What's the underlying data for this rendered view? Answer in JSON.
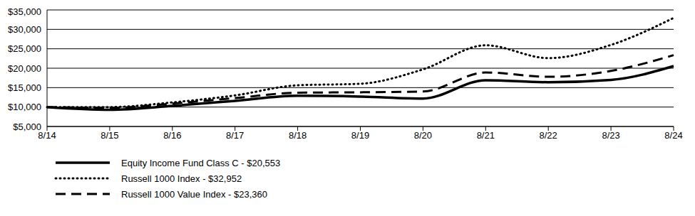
{
  "chart_data": {
    "type": "line",
    "categories": [
      "8/14",
      "8/15",
      "8/16",
      "8/17",
      "8/18",
      "8/19",
      "8/20",
      "8/21",
      "8/22",
      "8/23",
      "8/24"
    ],
    "series": [
      {
        "name": "Equity Income Fund Class C - $20,553",
        "color": "#000000",
        "line_style": "solid",
        "values": [
          10000,
          9300,
          10300,
          11600,
          12900,
          12700,
          12200,
          16900,
          16400,
          17000,
          20553
        ]
      },
      {
        "name": "Russell 1000 Index - $32,952",
        "color": "#000000",
        "line_style": "dotted",
        "values": [
          10000,
          10000,
          11200,
          13000,
          15600,
          16000,
          19700,
          25900,
          22600,
          26000,
          32952
        ]
      },
      {
        "name": "Russell 1000 Value Index - $23,360",
        "color": "#000000",
        "line_style": "dashed",
        "values": [
          10000,
          9800,
          10900,
          12300,
          13700,
          13800,
          14000,
          18900,
          17800,
          19300,
          23360
        ]
      }
    ],
    "ylim": [
      5000,
      35000
    ],
    "yticks": [
      {
        "value": 5000,
        "label": "$5,000"
      },
      {
        "value": 10000,
        "label": "$10,000"
      },
      {
        "value": 15000,
        "label": "$15,000"
      },
      {
        "value": 20000,
        "label": "$20,000"
      },
      {
        "value": 25000,
        "label": "$25,000"
      },
      {
        "value": 30000,
        "label": "$30,000"
      },
      {
        "value": 35000,
        "label": "$35,000"
      }
    ],
    "grid": true,
    "legend": "bottom-left"
  }
}
